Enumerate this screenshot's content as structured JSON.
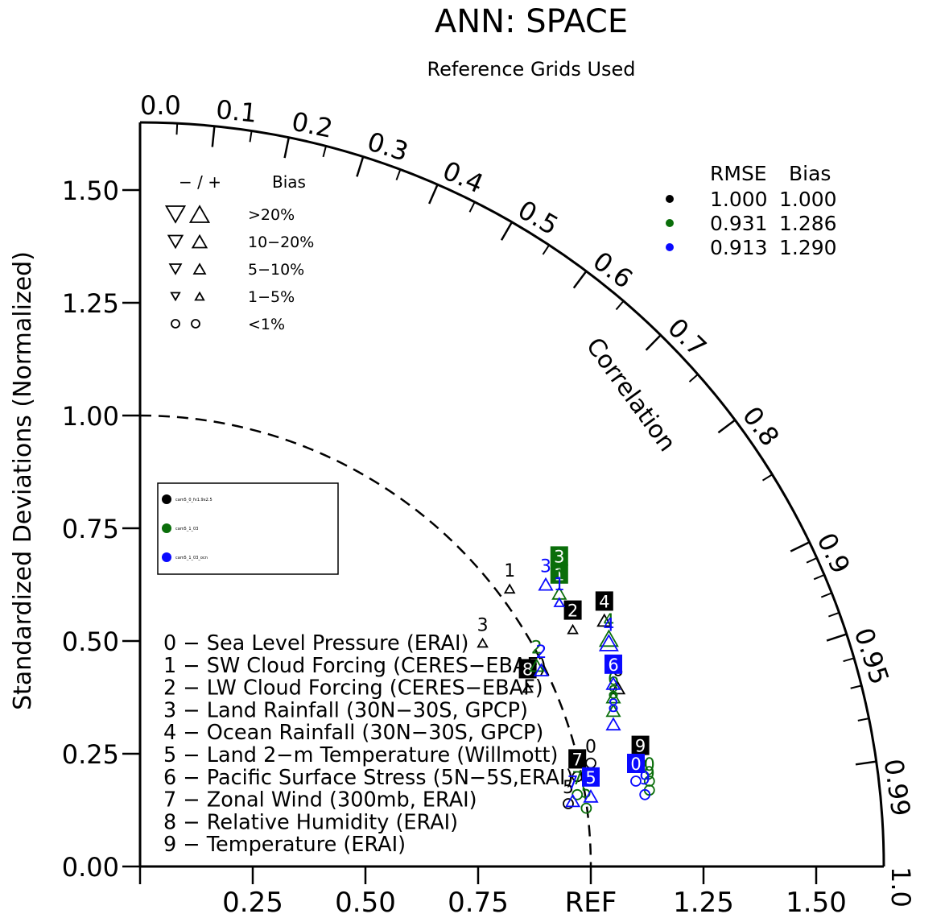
{
  "chart_data": {
    "type": "taylor_diagram",
    "title": "ANN: SPACE",
    "subtitle": "Reference Grids Used",
    "ylabel": "Standardized Deviations (Normalized)",
    "arc_label": "Correlation",
    "ref_label": "REF",
    "std_max": 1.65,
    "y_ticks": [
      "0.00",
      "0.25",
      "0.50",
      "0.75",
      "1.00",
      "1.25",
      "1.50"
    ],
    "y_tick_values": [
      0,
      0.25,
      0.5,
      0.75,
      1.0,
      1.25,
      1.5
    ],
    "x_ticks": [
      {
        "label": "0.25",
        "value": 0.25
      },
      {
        "label": "0.50",
        "value": 0.5
      },
      {
        "label": "0.75",
        "value": 0.75
      },
      {
        "label": "REF",
        "value": 1.0
      },
      {
        "label": "1.25",
        "value": 1.25
      },
      {
        "label": "1.50",
        "value": 1.5
      }
    ],
    "corr_labels": [
      {
        "label": "0.0",
        "value": 0.0
      },
      {
        "label": "0.1",
        "value": 0.1
      },
      {
        "label": "0.2",
        "value": 0.2
      },
      {
        "label": "0.3",
        "value": 0.3
      },
      {
        "label": "0.4",
        "value": 0.4
      },
      {
        "label": "0.5",
        "value": 0.5
      },
      {
        "label": "0.6",
        "value": 0.6
      },
      {
        "label": "0.7",
        "value": 0.7
      },
      {
        "label": "0.8",
        "value": 0.8
      },
      {
        "label": "0.9",
        "value": 0.9
      },
      {
        "label": "0.95",
        "value": 0.95
      },
      {
        "label": "0.99",
        "value": 0.99
      },
      {
        "label": "1.0",
        "value": 1.0
      }
    ],
    "corr_minor": [
      0.05,
      0.15,
      0.25,
      0.35,
      0.45,
      0.55,
      0.65,
      0.75,
      0.85,
      0.91,
      0.92,
      0.93,
      0.94,
      0.96,
      0.97,
      0.98
    ],
    "bias_legend": {
      "header_sign": "− / +",
      "header_bias": "Bias",
      "rows": [
        {
          "label": ">20%",
          "size": "xl"
        },
        {
          "label": "10−20%",
          "size": "lg"
        },
        {
          "label": "5−10%",
          "size": "md"
        },
        {
          "label": "1−5%",
          "size": "sm"
        },
        {
          "label": "<1%",
          "size": "circle"
        }
      ]
    },
    "rmse_table": {
      "header_rmse": "RMSE",
      "header_bias": "Bias",
      "rows": [
        {
          "color": "#000000",
          "rmse": "1.000",
          "bias": "1.000"
        },
        {
          "color": "#0a6e0a",
          "rmse": "0.931",
          "bias": "1.286"
        },
        {
          "color": "#0a0aff",
          "rmse": "0.913",
          "bias": "1.290"
        }
      ]
    },
    "series": [
      {
        "name": "cam5_0_fv1.9x2.5",
        "color": "#000000"
      },
      {
        "name": "cam5_1_03",
        "color": "#0a6e0a"
      },
      {
        "name": "cam5_1_03_ocn",
        "color": "#0a0aff"
      }
    ],
    "variables": [
      {
        "id": "0",
        "label": "0 − Sea Level Pressure (ERAI)"
      },
      {
        "id": "1",
        "label": "1 − SW Cloud Forcing (CERES−EBAF)"
      },
      {
        "id": "2",
        "label": "2 − LW Cloud Forcing (CERES−EBAF)"
      },
      {
        "id": "3",
        "label": "3 − Land Rainfall (30N−30S, GPCP)"
      },
      {
        "id": "4",
        "label": "4 − Ocean Rainfall (30N−30S, GPCP)"
      },
      {
        "id": "5",
        "label": "5 − Land 2−m Temperature (Willmott)"
      },
      {
        "id": "6",
        "label": "6 − Pacific Surface Stress (5N−5S,ERAI)"
      },
      {
        "id": "7",
        "label": "7 − Zonal Wind (300mb, ERAI)"
      },
      {
        "id": "8",
        "label": "8 − Relative Humidity (ERAI)"
      },
      {
        "id": "9",
        "label": "9 − Temperature (ERAI)"
      }
    ],
    "points": [
      {
        "series": 0,
        "id": "0",
        "x": 1.0,
        "y": 0.24,
        "boxed": false,
        "marker": "circle"
      },
      {
        "series": 0,
        "id": "1",
        "x": 0.82,
        "y": 0.63,
        "boxed": false,
        "marker": "tri_up",
        "msize": "sm"
      },
      {
        "series": 0,
        "id": "2",
        "x": 0.96,
        "y": 0.54,
        "boxed": true,
        "marker": "tri_up",
        "msize": "sm"
      },
      {
        "series": 0,
        "id": "3",
        "x": 0.76,
        "y": 0.51,
        "boxed": false,
        "marker": "tri_up",
        "msize": "sm"
      },
      {
        "series": 0,
        "id": "4",
        "x": 1.03,
        "y": 0.56,
        "boxed": true,
        "marker": "tri_up",
        "msize": "md"
      },
      {
        "series": 0,
        "id": "5",
        "x": 0.95,
        "y": 0.15,
        "boxed": false,
        "marker": "circle"
      },
      {
        "series": 0,
        "id": "6",
        "x": 1.06,
        "y": 0.41,
        "boxed": false,
        "marker": "tri_up",
        "msize": "md"
      },
      {
        "series": 0,
        "id": "7",
        "x": 0.97,
        "y": 0.21,
        "boxed": true,
        "marker": "circle"
      },
      {
        "series": 0,
        "id": "8",
        "x": 0.86,
        "y": 0.41,
        "boxed": true,
        "marker": "tri_up",
        "msize": "sm"
      },
      {
        "series": 0,
        "id": "9",
        "x": 1.11,
        "y": 0.24,
        "boxed": true,
        "marker": "circle"
      },
      {
        "series": 1,
        "id": "0",
        "x": 1.13,
        "y": 0.2,
        "boxed": false,
        "marker": "circle"
      },
      {
        "series": 1,
        "id": "1",
        "x": 0.93,
        "y": 0.62,
        "boxed": true,
        "marker": "tri_up",
        "msize": "md"
      },
      {
        "series": 1,
        "id": "2",
        "x": 0.88,
        "y": 0.46,
        "boxed": false,
        "marker": "tri_up",
        "msize": "md"
      },
      {
        "series": 1,
        "id": "3",
        "x": 0.93,
        "y": 0.66,
        "boxed": true,
        "marker": "tri_up",
        "msize": "md"
      },
      {
        "series": 1,
        "id": "4",
        "x": 1.04,
        "y": 0.52,
        "boxed": false,
        "marker": "tri_up",
        "msize": "lg"
      },
      {
        "series": 1,
        "id": "5",
        "x": 0.99,
        "y": 0.14,
        "boxed": false,
        "marker": "circle"
      },
      {
        "series": 1,
        "id": "6",
        "x": 1.05,
        "y": 0.39,
        "boxed": false,
        "marker": "tri_up",
        "msize": "md"
      },
      {
        "series": 1,
        "id": "7",
        "x": 0.97,
        "y": 0.17,
        "boxed": false,
        "marker": "circle"
      },
      {
        "series": 1,
        "id": "8",
        "x": 1.05,
        "y": 0.36,
        "boxed": false,
        "marker": "tri_up",
        "msize": "md"
      },
      {
        "series": 1,
        "id": "9",
        "x": 1.13,
        "y": 0.18,
        "boxed": false,
        "marker": "circle"
      },
      {
        "series": 2,
        "id": "0",
        "x": 1.1,
        "y": 0.2,
        "boxed": true,
        "marker": "circle"
      },
      {
        "series": 2,
        "id": "1",
        "x": 0.93,
        "y": 0.6,
        "boxed": false,
        "marker": "tri_up",
        "msize": "sm"
      },
      {
        "series": 2,
        "id": "2",
        "x": 0.89,
        "y": 0.45,
        "boxed": false,
        "marker": "tri_up",
        "msize": "md"
      },
      {
        "series": 2,
        "id": "3",
        "x": 0.9,
        "y": 0.64,
        "boxed": false,
        "marker": "tri_up",
        "msize": "md"
      },
      {
        "series": 2,
        "id": "4",
        "x": 1.04,
        "y": 0.51,
        "boxed": false,
        "marker": "tri_up",
        "msize": "lg"
      },
      {
        "series": 2,
        "id": "5",
        "x": 1.0,
        "y": 0.17,
        "boxed": true,
        "marker": "tri_up",
        "msize": "md"
      },
      {
        "series": 2,
        "id": "6",
        "x": 1.05,
        "y": 0.42,
        "boxed": true,
        "marker": "tri_up",
        "msize": "md"
      },
      {
        "series": 2,
        "id": "7",
        "x": 0.96,
        "y": 0.16,
        "boxed": false,
        "marker": "tri_up",
        "msize": "md"
      },
      {
        "series": 2,
        "id": "8",
        "x": 1.05,
        "y": 0.33,
        "boxed": false,
        "marker": "tri_up",
        "msize": "md"
      },
      {
        "series": 2,
        "id": "9",
        "x": 1.12,
        "y": 0.17,
        "boxed": false,
        "marker": "circle"
      }
    ]
  }
}
